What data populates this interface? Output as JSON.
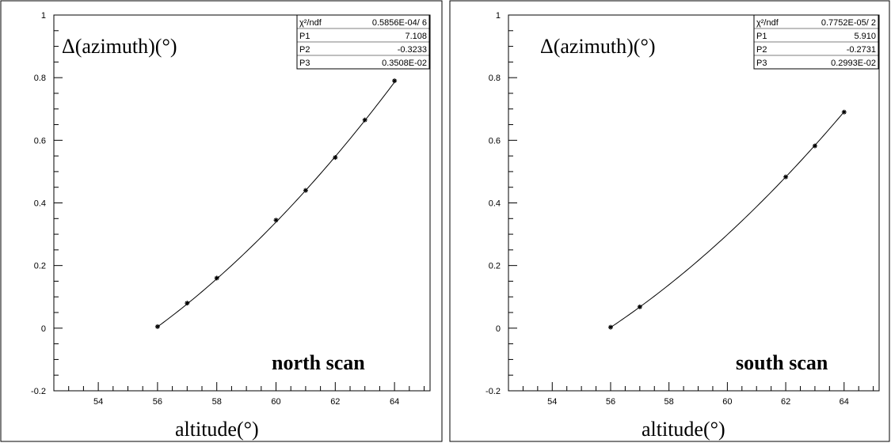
{
  "chart_data": [
    {
      "type": "scatter",
      "title": "",
      "annotation": "north scan",
      "ylabel": "Δ(azimuth)(°)",
      "xlabel": "altitude(°)",
      "xlim": [
        52.5,
        65.2
      ],
      "ylim": [
        -0.2,
        1.0
      ],
      "x_ticks": [
        54,
        56,
        58,
        60,
        62,
        64
      ],
      "y_ticks": [
        -0.2,
        0,
        0.2,
        0.4,
        0.6,
        0.8,
        1
      ],
      "y_tick_labels": [
        "-0.2",
        "0",
        "0.2",
        "0.4",
        "0.6",
        "0.8",
        "1"
      ],
      "grid": false,
      "points": {
        "x": [
          56,
          57,
          58,
          60,
          61,
          62,
          63,
          64
        ],
        "y": [
          0.005,
          0.08,
          0.16,
          0.345,
          0.44,
          0.545,
          0.665,
          0.79
        ]
      },
      "fit": {
        "from": 56,
        "to": 64,
        "p1": 7.108,
        "p2": -0.3233,
        "p3": 0.003508
      },
      "stats": {
        "rows": [
          {
            "name": "χ²/ndf",
            "value": "0.5856E-04/   6"
          },
          {
            "name": "P1",
            "value": "7.108"
          },
          {
            "name": "P2",
            "value": "-0.3233"
          },
          {
            "name": "P3",
            "value": "0.3508E-02"
          }
        ]
      }
    },
    {
      "type": "scatter",
      "title": "",
      "annotation": "south scan",
      "ylabel": "Δ(azimuth)(°)",
      "xlabel": "altitude(°)",
      "xlim": [
        52.5,
        65.2
      ],
      "ylim": [
        -0.2,
        1.0
      ],
      "x_ticks": [
        54,
        56,
        58,
        60,
        62,
        64
      ],
      "y_ticks": [
        -0.2,
        0,
        0.2,
        0.4,
        0.6,
        0.8,
        1
      ],
      "y_tick_labels": [
        "-0.2",
        "0",
        "0.2",
        "0.4",
        "0.6",
        "0.8",
        "1"
      ],
      "grid": false,
      "points": {
        "x": [
          56,
          57,
          62,
          63,
          64
        ],
        "y": [
          0.003,
          0.068,
          0.483,
          0.582,
          0.69
        ]
      },
      "fit": {
        "from": 56,
        "to": 64,
        "p1": 5.91,
        "p2": -0.2731,
        "p3": 0.002993
      },
      "stats": {
        "rows": [
          {
            "name": "χ²/ndf",
            "value": "0.7752E-05/   2"
          },
          {
            "name": "P1",
            "value": "5.910"
          },
          {
            "name": "P2",
            "value": "-0.2731"
          },
          {
            "name": "P3",
            "value": "0.2993E-02"
          }
        ]
      }
    }
  ]
}
